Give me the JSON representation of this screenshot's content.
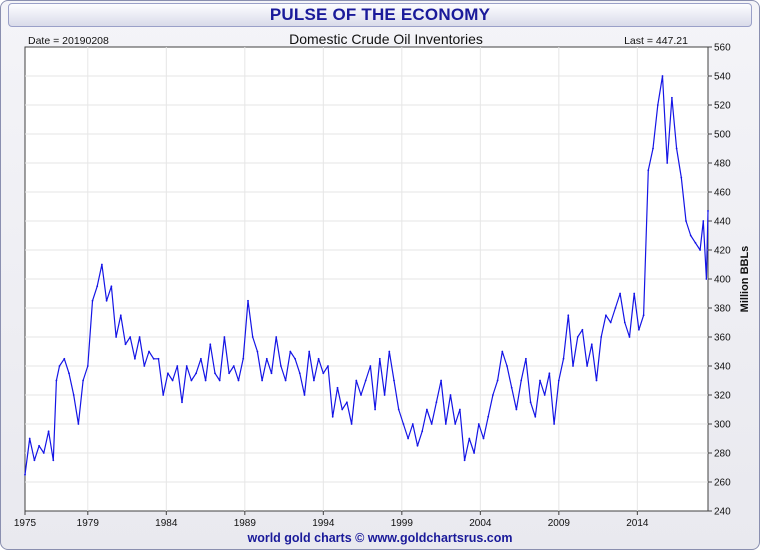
{
  "banner_title": "PULSE OF THE ECONOMY",
  "footer_credit": "world gold charts © www.goldchartsrus.com",
  "chart_data": {
    "type": "line",
    "title": "Domestic Crude Oil Inventories",
    "date_label": "Date = 20190208",
    "last_label": "Last = 447.21",
    "ylabel": "Million BBLs",
    "xlabel": "",
    "line_color": "#1515e6",
    "xlim": [
      1975,
      2018.5
    ],
    "ylim": [
      240,
      560
    ],
    "x_ticks": [
      "1975",
      "1979",
      "1984",
      "1989",
      "1994",
      "1999",
      "2004",
      "2009",
      "2014"
    ],
    "y_ticks": [
      "240",
      "260",
      "280",
      "300",
      "320",
      "340",
      "360",
      "380",
      "400",
      "420",
      "440",
      "460",
      "480",
      "500",
      "520",
      "540",
      "560"
    ],
    "grid": true,
    "series": [
      {
        "x": [
          1975.0,
          1975.3,
          1975.6,
          1975.9,
          1976.2,
          1976.5,
          1976.8,
          1977.0,
          1977.2,
          1977.5,
          1977.8,
          1978.1,
          1978.4,
          1978.7,
          1979.0,
          1979.3,
          1979.6,
          1979.9,
          1980.2,
          1980.5,
          1980.8,
          1981.1,
          1981.4,
          1981.7,
          1982.0,
          1982.3,
          1982.6,
          1982.9,
          1983.2,
          1983.5,
          1983.8,
          1984.1,
          1984.4,
          1984.7,
          1985.0,
          1985.3,
          1985.6,
          1985.9,
          1986.2,
          1986.5,
          1986.8,
          1987.1,
          1987.4,
          1987.7,
          1988.0,
          1988.3,
          1988.6,
          1988.9,
          1989.2,
          1989.5,
          1989.8,
          1990.1,
          1990.4,
          1990.7,
          1991.0,
          1991.3,
          1991.6,
          1991.9,
          1992.2,
          1992.5,
          1992.8,
          1993.1,
          1993.4,
          1993.7,
          1994.0,
          1994.3,
          1994.6,
          1994.9,
          1995.2,
          1995.5,
          1995.8,
          1996.1,
          1996.4,
          1996.7,
          1997.0,
          1997.3,
          1997.6,
          1997.9,
          1998.2,
          1998.5,
          1998.8,
          1999.1,
          1999.4,
          1999.7,
          2000.0,
          2000.3,
          2000.6,
          2000.9,
          2001.2,
          2001.5,
          2001.8,
          2002.1,
          2002.4,
          2002.7,
          2003.0,
          2003.3,
          2003.6,
          2003.9,
          2004.2,
          2004.5,
          2004.8,
          2005.1,
          2005.4,
          2005.7,
          2006.0,
          2006.3,
          2006.6,
          2006.9,
          2007.2,
          2007.5,
          2007.8,
          2008.1,
          2008.4,
          2008.7,
          2009.0,
          2009.3,
          2009.6,
          2009.9,
          2010.2,
          2010.5,
          2010.8,
          2011.1,
          2011.4,
          2011.7,
          2012.0,
          2012.3,
          2012.6,
          2012.9,
          2013.2,
          2013.5,
          2013.8,
          2014.1,
          2014.4,
          2014.7,
          2015.0,
          2015.3,
          2015.6,
          2015.9,
          2016.2,
          2016.5,
          2016.8,
          2017.1,
          2017.4,
          2017.7,
          2018.0,
          2018.2,
          2018.4,
          2018.5
        ],
        "values": [
          265,
          290,
          275,
          285,
          280,
          295,
          275,
          330,
          340,
          345,
          335,
          320,
          300,
          330,
          340,
          385,
          395,
          410,
          385,
          395,
          360,
          375,
          355,
          360,
          345,
          360,
          340,
          350,
          345,
          345,
          320,
          335,
          330,
          340,
          315,
          340,
          330,
          335,
          345,
          330,
          355,
          335,
          330,
          360,
          335,
          340,
          330,
          345,
          385,
          360,
          350,
          330,
          345,
          335,
          360,
          340,
          330,
          350,
          345,
          335,
          320,
          350,
          330,
          345,
          335,
          340,
          305,
          325,
          310,
          315,
          300,
          330,
          320,
          330,
          340,
          310,
          345,
          320,
          350,
          330,
          310,
          300,
          290,
          300,
          285,
          295,
          310,
          300,
          315,
          330,
          300,
          320,
          300,
          310,
          275,
          290,
          280,
          300,
          290,
          305,
          320,
          330,
          350,
          340,
          325,
          310,
          330,
          345,
          315,
          305,
          330,
          320,
          335,
          300,
          330,
          345,
          375,
          340,
          360,
          365,
          340,
          355,
          330,
          360,
          375,
          370,
          380,
          390,
          370,
          360,
          390,
          365,
          375,
          475,
          490,
          520,
          540,
          480,
          525,
          490,
          470,
          440,
          430,
          425,
          420,
          440,
          400,
          447
        ]
      }
    ]
  }
}
